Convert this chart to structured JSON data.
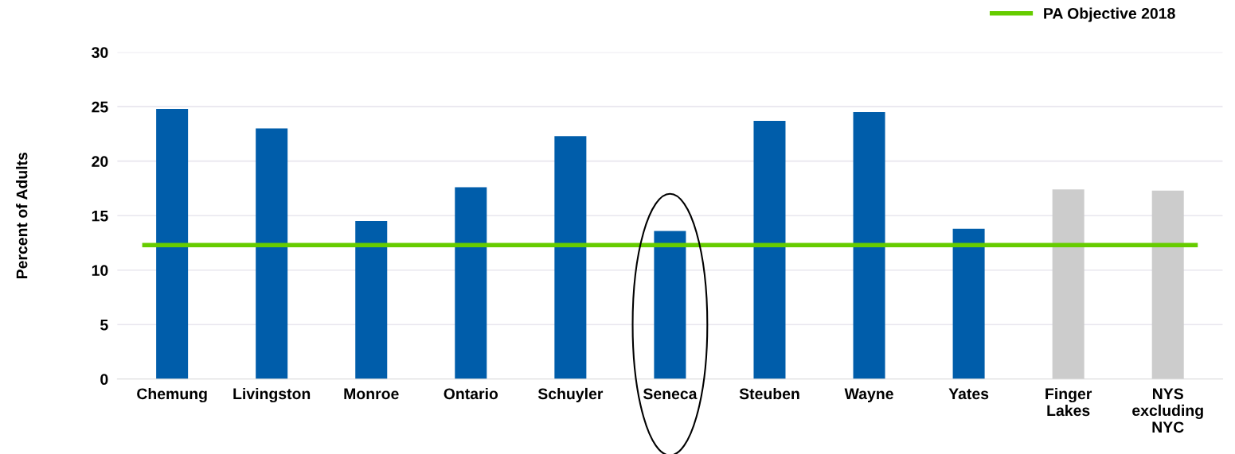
{
  "chart_data": {
    "type": "bar",
    "ylabel": "Percent of Adults",
    "categories": [
      "Chemung",
      "Livingston",
      "Monroe",
      "Ontario",
      "Schuyler",
      "Seneca",
      "Steuben",
      "Wayne",
      "Yates",
      "Finger\nLakes",
      "NYS\nexcluding\nNYC"
    ],
    "values": [
      24.8,
      23.0,
      14.5,
      17.6,
      22.3,
      13.6,
      23.7,
      24.5,
      13.8,
      17.4,
      17.3
    ],
    "colors": [
      "#005daa",
      "#005daa",
      "#005daa",
      "#005daa",
      "#005daa",
      "#005daa",
      "#005daa",
      "#005daa",
      "#005daa",
      "#cccccc",
      "#cccccc"
    ],
    "ref_lines": [
      {
        "axis": "y",
        "value": 12.3,
        "label": "PA Objective 2018",
        "color": "#66cc00"
      }
    ],
    "ylim": [
      0,
      30
    ],
    "yticks": [
      0,
      5,
      10,
      15,
      20,
      25,
      30
    ],
    "grid": "y",
    "legend": "top right"
  }
}
